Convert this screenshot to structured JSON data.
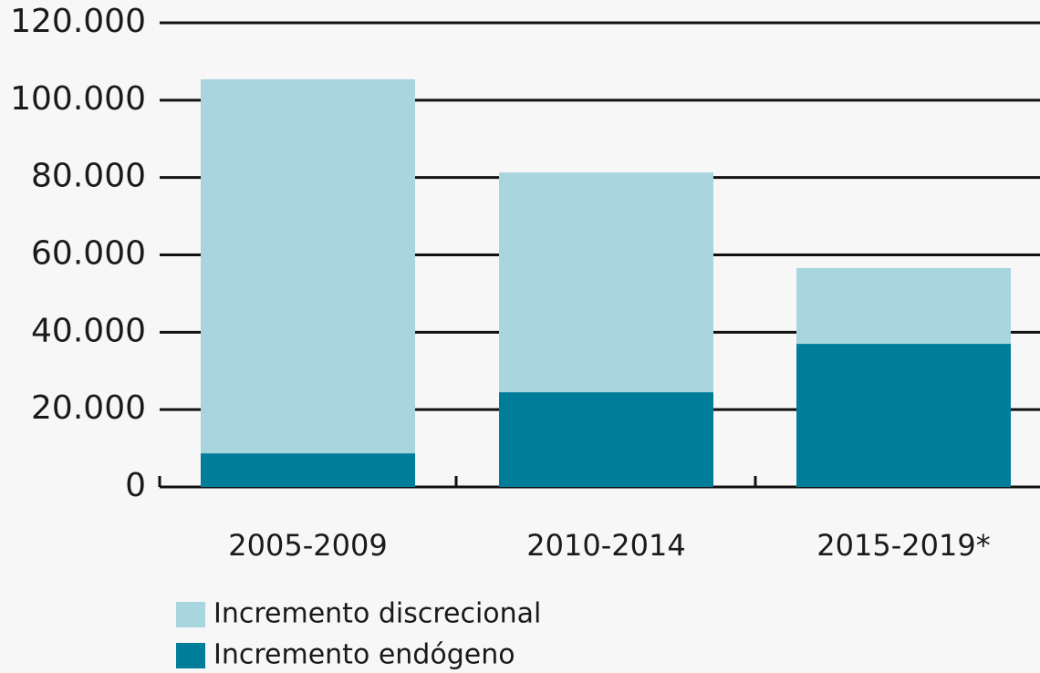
{
  "chart_data": {
    "type": "stacked_bar",
    "categories": [
      "2005-2009",
      "2010-2014",
      "2015-2019*"
    ],
    "series": [
      {
        "name": "Incremento discrecional",
        "color": "#a9d5de",
        "values": [
          96700,
          56800,
          19600
        ]
      },
      {
        "name": "Incremento endógeno",
        "color": "#007e99",
        "values": [
          8700,
          24500,
          37000
        ]
      }
    ],
    "ylim": [
      0,
      120000
    ],
    "yticks": [
      0,
      {
        "value": 20000,
        "label": "20.000"
      },
      {
        "value": 40000,
        "label": "40.000"
      },
      {
        "value": 60000,
        "label": "60.000"
      },
      {
        "value": 80000,
        "label": "80.000"
      },
      {
        "value": 100000,
        "label": "100.000"
      },
      {
        "value": 120000,
        "label": "120.000"
      }
    ],
    "grid": true
  }
}
